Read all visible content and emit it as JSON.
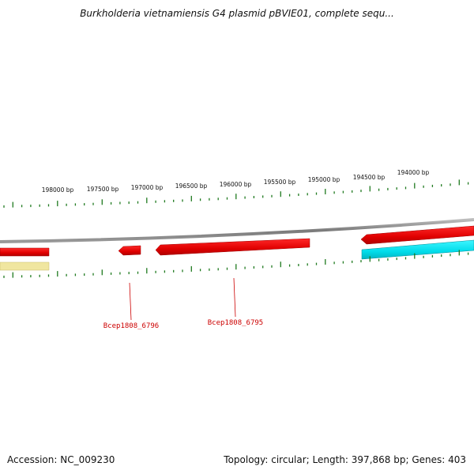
{
  "title": "Burkholderia vietnamiensis G4 plasmid pBVIE01, complete sequ...",
  "accession_text": "Accession: NC_009230",
  "summary_text": "Topology: circular; Length: 397,868 bp; Genes: 403",
  "colors": {
    "backbone": "#8a8a8a",
    "tick": "#1f7a1f",
    "gene_forward": "#ee0000",
    "gene_highlight": "#00e5ee",
    "gene_other": "#f0e6a0",
    "gene_label": "#cc0000"
  },
  "scale_labels": [
    "198000 bp",
    "197500 bp",
    "197000 bp",
    "196500 bp",
    "196000 bp",
    "195500 bp",
    "195000 bp",
    "194500 bp",
    "194000 bp"
  ],
  "gene_labels": [
    "Bcep1808_6796",
    "Bcep1808_6795"
  ]
}
